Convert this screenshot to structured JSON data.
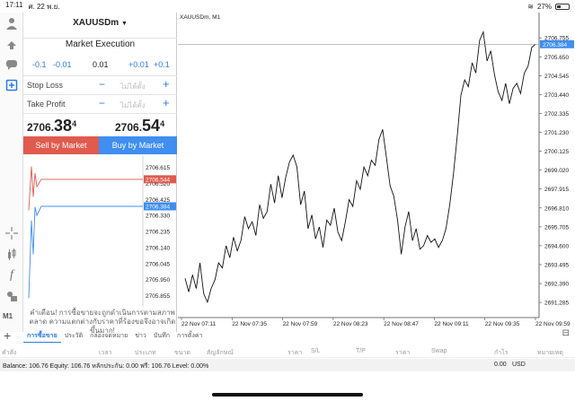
{
  "statusbar": {
    "time": "17:11",
    "date": "ศ. 22 พ.ย.",
    "battery": "27%",
    "battery_level": 0.27
  },
  "leftbar": {
    "period_label": "M1"
  },
  "panel": {
    "symbol": "XAUUSDm",
    "execution": "Market Execution",
    "steps": {
      "m01": "-0.1",
      "m001": "-0.01",
      "lot": "0.01",
      "p001": "+0.01",
      "p01": "+0.1"
    },
    "stop_loss": {
      "label": "Stop Loss",
      "value": "ไม่ได้ตั้ง"
    },
    "take_profit": {
      "label": "Take Profit",
      "value": "ไม่ได้ตั้ง"
    },
    "sell_price": {
      "main": "2706.",
      "big": "38",
      "sup": "4"
    },
    "buy_price": {
      "main": "2706.",
      "big": "54",
      "sup": "4"
    },
    "sell_label": "Sell by Market",
    "buy_label": "Buy by Market",
    "warning": "คำเตือน! การซื้อขายจะถูกดำเนินการตามสภาพตลาด ความแตกต่างกับราคาที่ร้องขอจึงอาจเกิดขึ้นมาก!",
    "mini_chart": {
      "ticks": [
        "2706.615",
        "2706.520",
        "2706.425",
        "2706.330",
        "2706.235",
        "2706.140",
        "2706.045",
        "2705.950",
        "2705.855"
      ],
      "ask_label": "2706.544",
      "bid_label": "2706.384",
      "ask": 2706.544,
      "bid": 2706.384,
      "ylim": [
        2705.8,
        2706.66
      ],
      "ask_color": "#e05a4e",
      "bid_color": "#3f8ef0"
    }
  },
  "chart": {
    "title": "XAUUSDm, M1",
    "price_label": "2706.384",
    "price_color": "#3f8ef0",
    "yticks": [
      "2706.755",
      "2705.650",
      "2704.545",
      "2703.440",
      "2702.335",
      "2701.230",
      "2700.125",
      "2699.020",
      "2697.915",
      "2696.810",
      "2695.705",
      "2694.600",
      "2693.495",
      "2692.390",
      "2691.285"
    ],
    "xticks": [
      "22 Nov 07:11",
      "22 Nov 07:35",
      "22 Nov 07:59",
      "22 Nov 08:23",
      "22 Nov 08:47",
      "22 Nov 09:11",
      "22 Nov 09:35",
      "22 Nov 09:59"
    ],
    "ylim": [
      2690.4,
      2707.5
    ],
    "series": [
      2692.7,
      2691.9,
      2692.9,
      2692.1,
      2693.6,
      2691.8,
      2691.3,
      2692.1,
      2692.6,
      2693.6,
      2693.3,
      2694.6,
      2693.9,
      2695.1,
      2694.3,
      2694.9,
      2696.3,
      2695.6,
      2696.0,
      2695.2,
      2697.0,
      2696.2,
      2696.6,
      2698.2,
      2697.1,
      2698.7,
      2697.4,
      2698.6,
      2699.5,
      2699.9,
      2699.2,
      2697.0,
      2697.8,
      2695.6,
      2696.4,
      2695.0,
      2695.7,
      2694.5,
      2696.1,
      2695.8,
      2696.8,
      2695.4,
      2694.9,
      2696.0,
      2697.3,
      2696.9,
      2698.4,
      2697.9,
      2699.2,
      2698.7,
      2699.6,
      2699.3,
      2700.8,
      2701.4,
      2699.8,
      2698.1,
      2697.5,
      2696.1,
      2694.1,
      2695.7,
      2696.6,
      2694.9,
      2695.6,
      2694.4,
      2694.6,
      2695.2,
      2694.8,
      2695.0,
      2694.5,
      2694.9,
      2695.6,
      2697.0,
      2698.8,
      2701.0,
      2703.4,
      2704.3,
      2703.9,
      2705.3,
      2704.7,
      2706.6,
      2707.1,
      2705.4,
      2706.0,
      2704.6,
      2703.6,
      2703.1,
      2704.1,
      2702.9,
      2703.8,
      2704.1,
      2703.5,
      2704.7,
      2705.1,
      2706.2,
      2706.384
    ]
  },
  "tabs": [
    "การซื้อขาย",
    "ประวัติ",
    "กล่องจดหมาย",
    "ข่าว",
    "บันทึก",
    "การตั้งค่า"
  ],
  "columns": [
    "คำสั่ง",
    "เวลา",
    "ประเภท",
    "ขนาด",
    "สัญลักษณ์",
    "ราคา",
    "S/L",
    "T/P",
    "ราคา",
    "Swap",
    "กำไร",
    "หมายเหตุ"
  ],
  "balance": {
    "text": "Balance: 106.76 Equity: 106.76 หลักประกัน: 0.00 ฟรี: 106.76 Level: 0.00%",
    "amount": "0.00",
    "currency": "USD"
  }
}
